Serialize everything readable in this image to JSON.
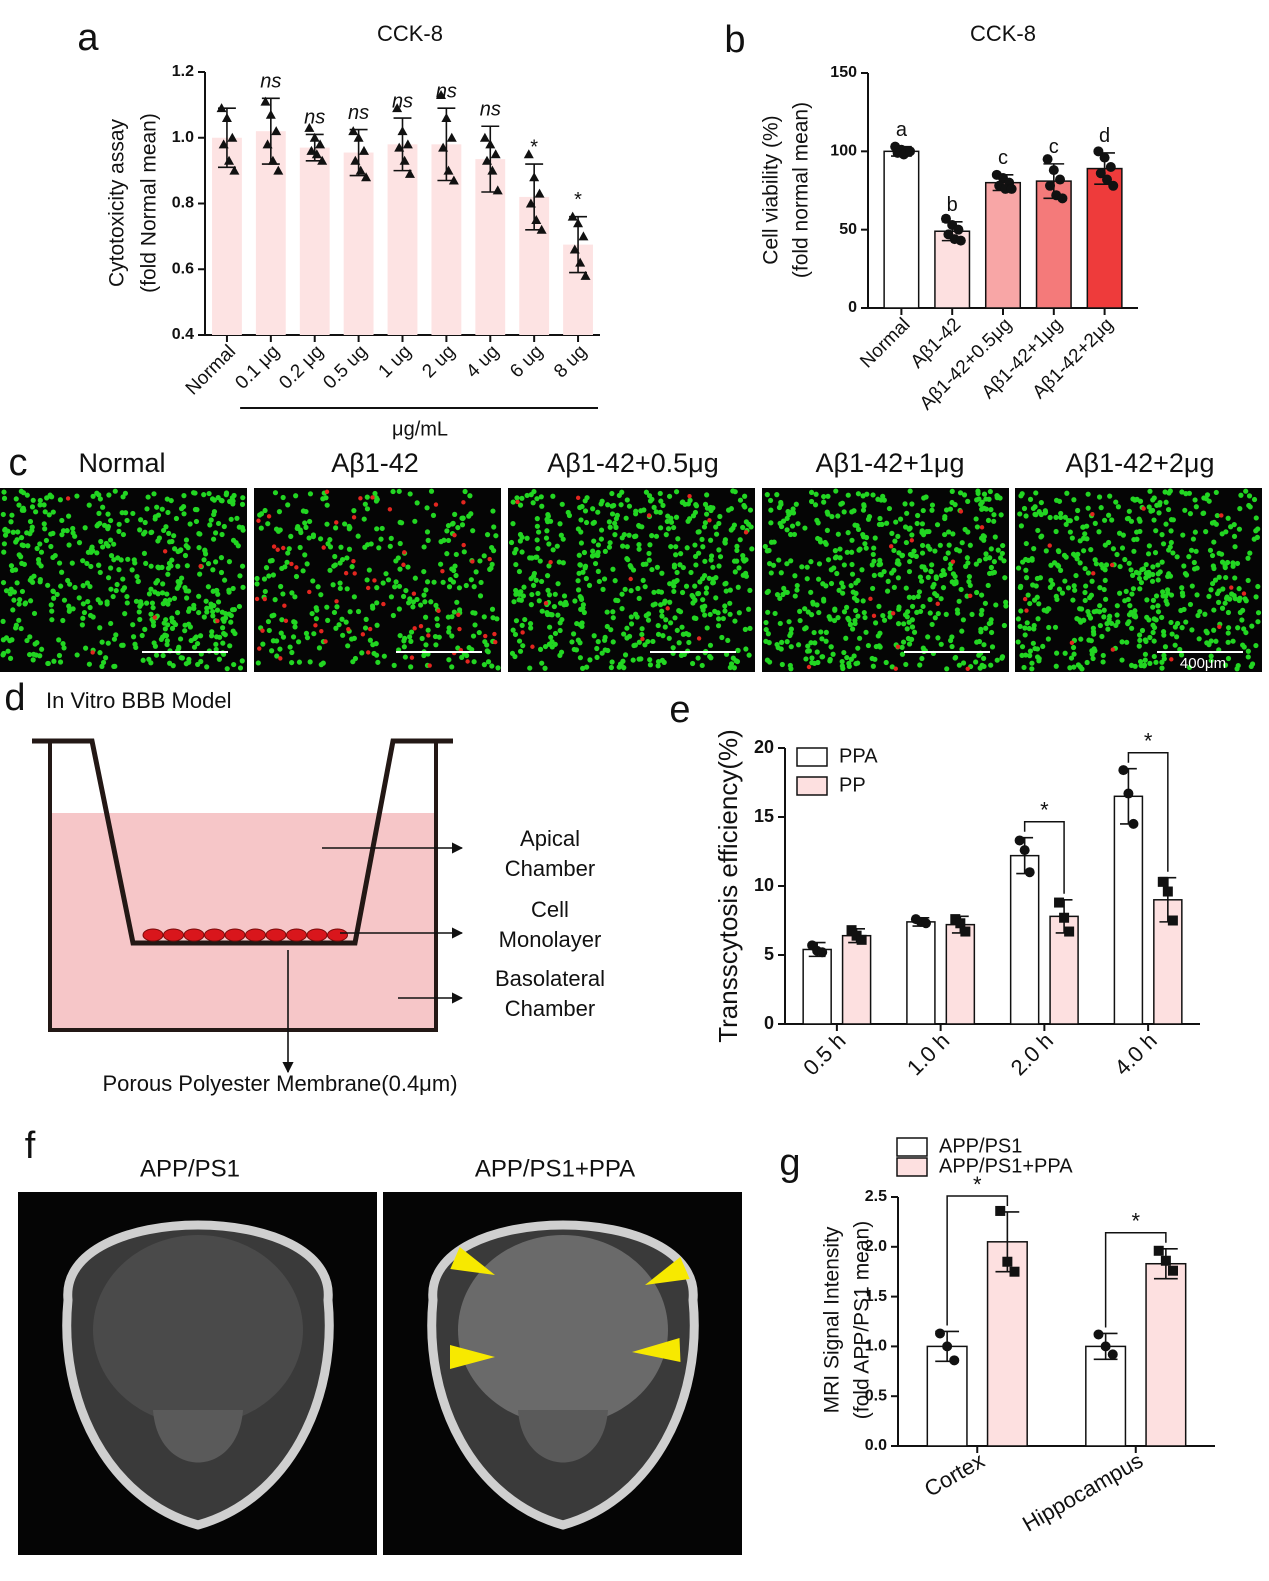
{
  "chart_data": [
    {
      "panel": "a",
      "type": "bar",
      "title": "CCK-8",
      "ylabel": [
        "Cytotoxicity assay",
        "(fold Normal mean)"
      ],
      "xlabel": "μg/mL",
      "categories": [
        "Normal",
        "0.1 μg",
        "0.2 μg",
        "0.5 ug",
        "1 ug",
        "2 ug",
        "4 ug",
        "6 ug",
        "8 ug"
      ],
      "values": [
        1.0,
        1.02,
        0.97,
        0.955,
        0.98,
        0.98,
        0.935,
        0.82,
        0.675
      ],
      "errors": [
        0.09,
        0.1,
        0.04,
        0.07,
        0.08,
        0.11,
        0.1,
        0.1,
        0.085
      ],
      "points": [
        [
          1.09,
          1.06,
          1.0,
          0.98,
          0.93,
          0.9
        ],
        [
          1.11,
          1.07,
          1.02,
          0.98,
          0.93,
          0.9
        ],
        [
          1.03,
          1.0,
          0.98,
          0.96,
          0.95,
          0.93
        ],
        [
          1.02,
          1.0,
          0.96,
          0.93,
          0.9,
          0.88
        ],
        [
          1.09,
          1.02,
          0.98,
          0.97,
          0.93,
          0.89
        ],
        [
          1.13,
          1.06,
          1.0,
          0.97,
          0.9,
          0.87
        ],
        [
          1.0,
          0.98,
          0.95,
          0.93,
          0.9,
          0.84
        ],
        [
          0.95,
          0.88,
          0.83,
          0.8,
          0.75,
          0.72
        ],
        [
          0.76,
          0.74,
          0.7,
          0.66,
          0.62,
          0.58
        ]
      ],
      "marker": "triangle",
      "annotations": [
        null,
        "ns",
        "ns",
        "ns",
        "ns",
        "ns",
        "ns",
        "*",
        "*"
      ],
      "color": "#fde3e3",
      "ylim": [
        0.4,
        1.2
      ],
      "yticks": [
        0.4,
        0.6,
        0.8,
        {
          "value": 1,
          "label": "1.0"
        },
        1.2
      ]
    },
    {
      "panel": "b",
      "type": "bar",
      "title": "CCK-8",
      "ylabel": [
        "Cell viability (%)",
        "(fold normal mean)"
      ],
      "categories": [
        "Normal",
        "Aβ1-42",
        "Aβ1-42+0.5μg",
        "Aβ1-42+1μg",
        "Aβ1-42+2μg"
      ],
      "values": [
        100,
        49,
        80,
        81,
        89
      ],
      "errors": [
        3,
        6,
        5,
        11,
        10
      ],
      "points": [
        [
          103,
          101,
          100,
          99,
          98,
          100
        ],
        [
          57,
          53,
          50,
          47,
          44,
          43
        ],
        [
          85,
          83,
          80,
          78,
          76,
          76
        ],
        [
          95,
          88,
          82,
          78,
          72,
          70
        ],
        [
          100,
          96,
          90,
          86,
          82,
          78
        ]
      ],
      "marker": "circle",
      "annotations": [
        "a",
        "b",
        "c",
        "c",
        "d"
      ],
      "colors": [
        "#ffffff",
        "#fde0e0",
        "#f8a6a6",
        "#f47a7a",
        "#ee3b3b"
      ],
      "edgecolor": "#111111",
      "ylim": [
        0,
        150
      ],
      "yticks": [
        0,
        50,
        100,
        150
      ]
    },
    {
      "panel": "e",
      "type": "bar",
      "ylabel": [
        "Transscytosis efficiency(%)"
      ],
      "categories": [
        "0.5 h",
        "1.0 h",
        "2.0 h",
        "4.0 h"
      ],
      "series": [
        {
          "name": "PPA",
          "color": "#ffffff",
          "marker": "circle",
          "values": [
            5.4,
            7.4,
            12.2,
            16.5
          ],
          "errors": [
            0.5,
            0.3,
            1.3,
            2.0
          ],
          "points": [
            [
              5.7,
              5.3,
              5.2
            ],
            [
              7.6,
              7.4,
              7.3
            ],
            [
              13.3,
              12.6,
              11.0
            ],
            [
              18.4,
              16.7,
              14.5
            ]
          ]
        },
        {
          "name": "PP",
          "color": "#fde0e0",
          "marker": "square",
          "values": [
            6.4,
            7.2,
            7.8,
            9.0
          ],
          "errors": [
            0.5,
            0.6,
            1.2,
            1.6
          ],
          "points": [
            [
              6.8,
              6.4,
              6.1
            ],
            [
              7.6,
              7.3,
              6.7
            ],
            [
              8.8,
              7.7,
              6.7
            ],
            [
              10.3,
              9.6,
              7.5
            ]
          ]
        }
      ],
      "annotations": [
        null,
        null,
        "*",
        "*"
      ],
      "edgecolor": "#111111",
      "ylim": [
        0,
        20
      ],
      "yticks": [
        0,
        5,
        10,
        15,
        20
      ]
    },
    {
      "panel": "g",
      "type": "bar",
      "ylabel": [
        "MRI Signal Intensity",
        "(fold APP/PS1 mean)"
      ],
      "categories": [
        "Cortex",
        "Hippocampus"
      ],
      "series": [
        {
          "name": "APP/PS1",
          "color": "#ffffff",
          "marker": "circle",
          "values": [
            1.0,
            1.0
          ],
          "errors": [
            0.15,
            0.13
          ],
          "points": [
            [
              1.13,
              1.0,
              0.86
            ],
            [
              1.12,
              1.0,
              0.92
            ]
          ]
        },
        {
          "name": "APP/PS1+PPA",
          "color": "#fde0e0",
          "marker": "square",
          "values": [
            2.05,
            1.83
          ],
          "errors": [
            0.3,
            0.15
          ],
          "points": [
            [
              2.36,
              1.85,
              1.75
            ],
            [
              1.96,
              1.86,
              1.76
            ]
          ]
        }
      ],
      "annotations": [
        "*",
        "*"
      ],
      "edgecolor": "#111111",
      "ylim": [
        0,
        2.5
      ],
      "yticks": [
        {
          "value": 0,
          "label": "0.0"
        },
        0.5,
        {
          "value": 1,
          "label": "1.0"
        },
        1.5,
        {
          "value": 2,
          "label": "2.0"
        },
        2.5
      ]
    }
  ],
  "panel_c": {
    "label": "c",
    "captions": [
      "Normal",
      "Aβ1-42",
      "Aβ1-42+0.5μg",
      "Aβ1-42+1μg",
      "Aβ1-42+2μg"
    ],
    "scale_bar": "400μm"
  },
  "panel_d": {
    "label": "d",
    "title": "In Vitro BBB Model",
    "apical": [
      "Apical",
      "Chamber"
    ],
    "monolayer": [
      "Cell",
      "Monolayer"
    ],
    "basolateral": [
      "Basolateral",
      "Chamber"
    ],
    "membrane": "Porous Polyester Membrane(0.4μm)"
  },
  "panel_f": {
    "label": "f",
    "captions": [
      "APP/PS1",
      "APP/PS1+PPA"
    ]
  }
}
